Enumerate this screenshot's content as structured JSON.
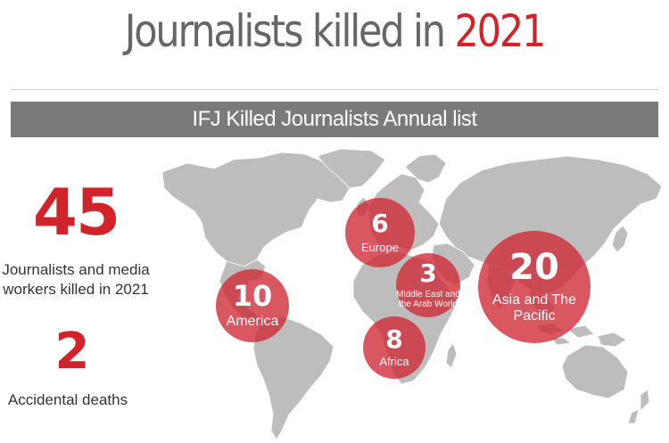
{
  "title": {
    "text": "Journalists killed in",
    "year": "2021"
  },
  "banner": "IFJ Killed Journalists Annual list",
  "stats": {
    "killed_value": "45",
    "killed_label_line1": "Journalists and media",
    "killed_label_line2": "workers killed in 2021",
    "accidental_value": "2",
    "accidental_label": "Accidental deaths"
  },
  "regions": {
    "europe": {
      "value": "6",
      "label": "Europe"
    },
    "middle_east": {
      "value": "3",
      "label_line1": "Middle East and",
      "label_line2": "the Arab World"
    },
    "asia": {
      "value": "20",
      "label_line1": "Asia and The",
      "label_line2": "Pacific"
    },
    "america": {
      "value": "10",
      "label": "America"
    },
    "africa": {
      "value": "8",
      "label": "Africa"
    }
  },
  "colors": {
    "accent": "#d1232a",
    "bubble": "#ce2834",
    "map_land": "#bdbdbd",
    "title_gray": "#666666"
  }
}
